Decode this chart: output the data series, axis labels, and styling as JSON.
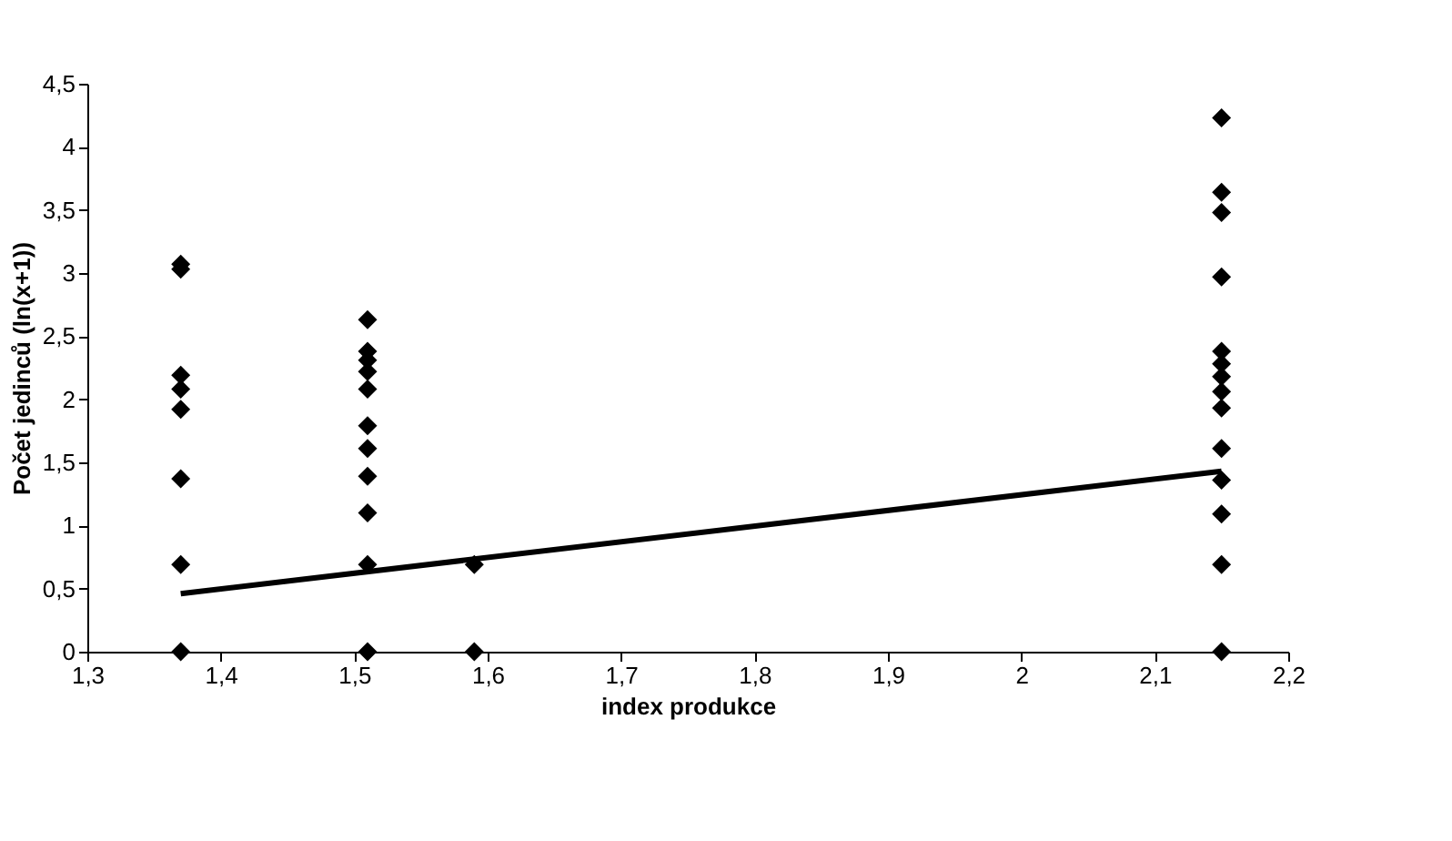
{
  "chart_data": {
    "type": "scatter",
    "xlabel": "index produkce",
    "ylabel": "Počet jedinců (ln(x+1))",
    "xlim": [
      1.3,
      2.2
    ],
    "xticks": [
      {
        "value": 1.3,
        "label": "1,3"
      },
      {
        "value": 1.4,
        "label": "1,4"
      },
      {
        "value": 1.5,
        "label": "1,5"
      },
      {
        "value": 1.6,
        "label": "1,6"
      },
      {
        "value": 1.7,
        "label": "1,7"
      },
      {
        "value": 1.8,
        "label": "1,8"
      },
      {
        "value": 1.9,
        "label": "1,9"
      },
      2,
      {
        "value": 2.1,
        "label": "2,1"
      },
      {
        "value": 2.2,
        "label": "2,2"
      }
    ],
    "ylim": [
      0,
      4.5
    ],
    "yticks": [
      0,
      {
        "value": 0.5,
        "label": "0,5"
      },
      1,
      {
        "value": 1.5,
        "label": "1,5"
      },
      2,
      {
        "value": 2.5,
        "label": "2,5"
      },
      3,
      {
        "value": 3.5,
        "label": "3,5"
      },
      4,
      {
        "value": 4.5,
        "label": "4,5"
      }
    ],
    "marker": "diamond",
    "grid": false,
    "series": [
      {
        "color": "#000000",
        "x": [
          1.37,
          1.37,
          1.37,
          1.37,
          1.37,
          1.37,
          1.37,
          1.37,
          1.51,
          1.51,
          1.51,
          1.51,
          1.51,
          1.51,
          1.51,
          1.51,
          1.51,
          1.51,
          1.51,
          1.59,
          1.59,
          2.15,
          2.15,
          2.15,
          2.15,
          2.15,
          2.15,
          2.15,
          2.15,
          2.15,
          2.15,
          2.15,
          2.15,
          2.15,
          2.15
        ],
        "values": [
          3.03,
          3.07,
          2.19,
          2.08,
          1.92,
          1.37,
          0.69,
          0,
          2.63,
          2.38,
          2.31,
          2.22,
          2.08,
          1.79,
          1.61,
          1.39,
          1.1,
          0.69,
          0,
          0.69,
          0,
          4.23,
          3.64,
          3.48,
          2.97,
          2.38,
          2.28,
          2.18,
          2.06,
          1.93,
          1.61,
          1.36,
          1.09,
          0.69,
          0
        ]
      },
      {
        "type": "line",
        "color": "#000000",
        "line_style": "solid",
        "marker": "none",
        "x": [
          1.37,
          2.15
        ],
        "values": [
          0.46,
          1.43
        ]
      }
    ]
  }
}
